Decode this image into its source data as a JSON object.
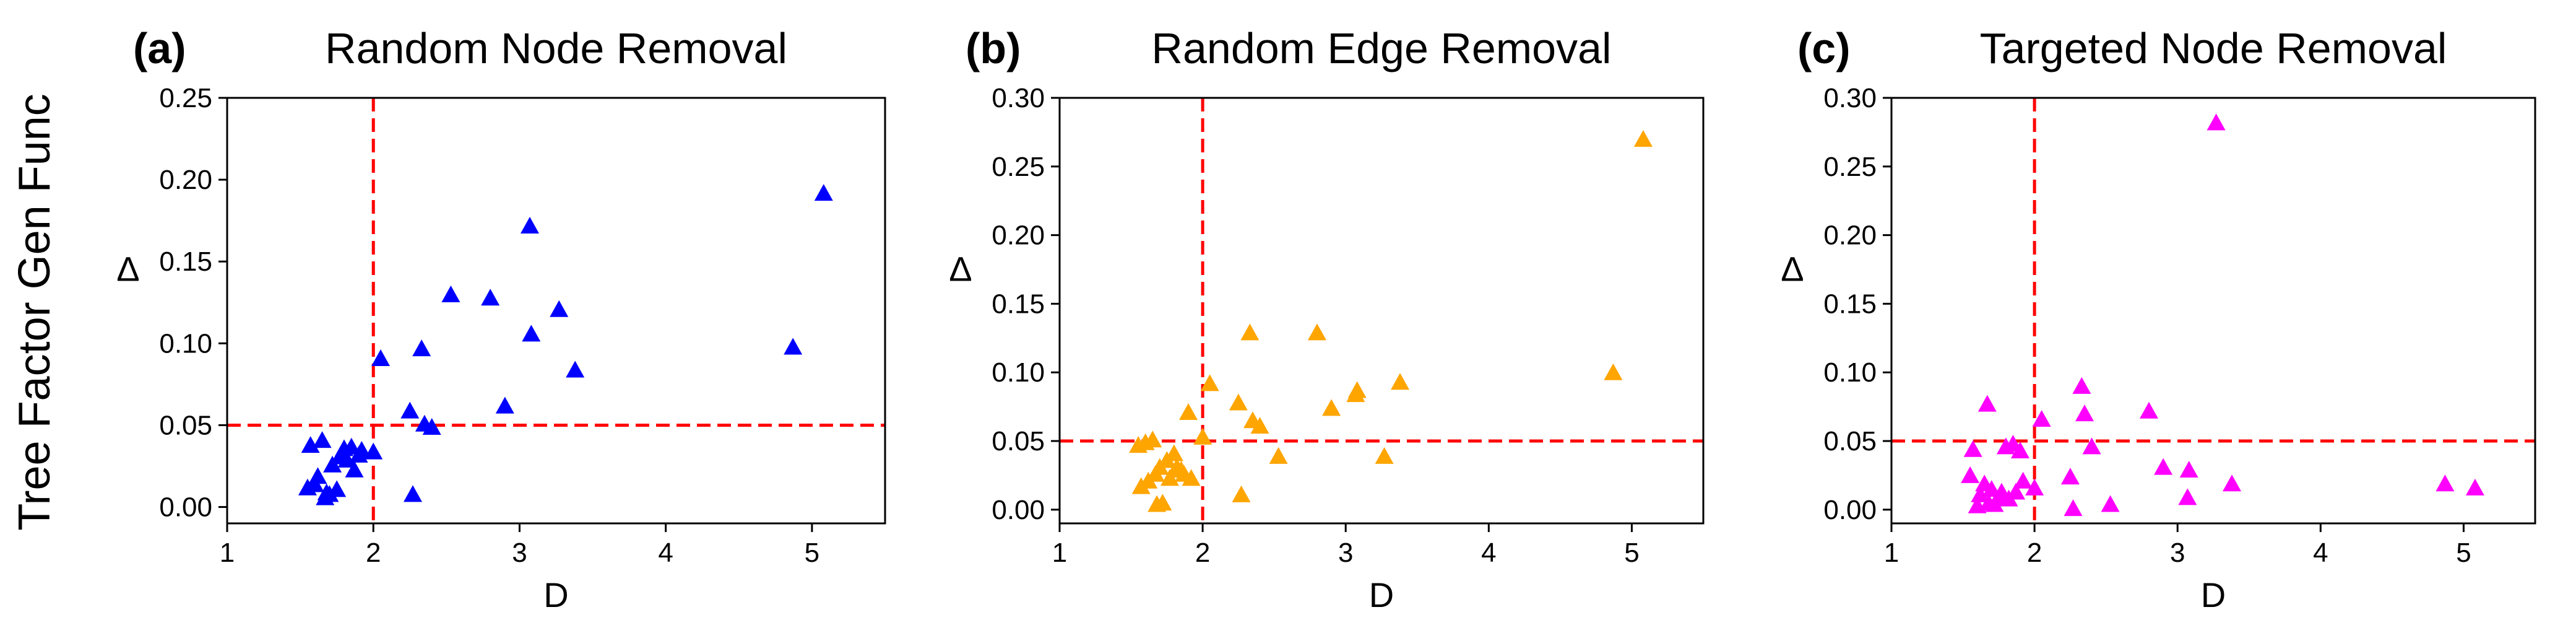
{
  "figure": {
    "ylabel_global": "Tree Factor Gen Func"
  },
  "chart_data": [
    {
      "type": "scatter",
      "panel_label": "(a)",
      "title": "Random Node Removal",
      "xlabel": "D",
      "ylabel": "Δ",
      "xlim": [
        1,
        5.5
      ],
      "ylim": [
        -0.01,
        0.25
      ],
      "xticks": [
        "1",
        "2",
        "3",
        "4",
        "5"
      ],
      "xtick_values": [
        1,
        2,
        3,
        4,
        5
      ],
      "yticks": [
        "0.00",
        "0.05",
        "0.10",
        "0.15",
        "0.20",
        "0.25"
      ],
      "ytick_values": [
        0,
        0.05,
        0.1,
        0.15,
        0.2,
        0.25
      ],
      "marker": "triangle",
      "color": "#0000ff",
      "vline_x": 2,
      "hline_y": 0.05,
      "threshold_color": "#ff0000",
      "x": [
        1.55,
        1.57,
        1.6,
        1.62,
        1.65,
        1.67,
        1.68,
        1.7,
        1.72,
        1.75,
        1.77,
        1.8,
        1.82,
        1.85,
        1.87,
        1.9,
        1.92,
        2.0,
        2.05,
        2.25,
        2.27,
        2.33,
        2.35,
        2.4,
        2.53,
        2.8,
        2.9,
        3.07,
        3.08,
        3.27,
        3.38,
        4.87,
        5.08
      ],
      "y": [
        0.011,
        0.037,
        0.013,
        0.018,
        0.04,
        0.005,
        0.008,
        0.007,
        0.025,
        0.01,
        0.03,
        0.035,
        0.028,
        0.036,
        0.022,
        0.031,
        0.034,
        0.033,
        0.09,
        0.058,
        0.007,
        0.096,
        0.05,
        0.048,
        0.129,
        0.127,
        0.061,
        0.171,
        0.105,
        0.12,
        0.083,
        0.097,
        0.191
      ]
    },
    {
      "type": "scatter",
      "panel_label": "(b)",
      "title": "Random Edge Removal",
      "xlabel": "D",
      "ylabel": "Δ",
      "xlim": [
        1,
        5.5
      ],
      "ylim": [
        -0.01,
        0.3
      ],
      "xticks": [
        "1",
        "2",
        "3",
        "4",
        "5"
      ],
      "xtick_values": [
        1,
        2,
        3,
        4,
        5
      ],
      "yticks": [
        "0.00",
        "0.05",
        "0.10",
        "0.15",
        "0.20",
        "0.25",
        "0.30"
      ],
      "ytick_values": [
        0,
        0.05,
        0.1,
        0.15,
        0.2,
        0.25,
        0.3
      ],
      "marker": "triangle",
      "color": "#ffa500",
      "vline_x": 2,
      "hline_y": 0.05,
      "threshold_color": "#ff0000",
      "x": [
        1.55,
        1.57,
        1.6,
        1.62,
        1.65,
        1.67,
        1.68,
        1.7,
        1.72,
        1.75,
        1.77,
        1.8,
        1.82,
        1.85,
        1.87,
        1.9,
        1.92,
        2.0,
        2.05,
        2.25,
        2.27,
        2.33,
        2.35,
        2.4,
        2.53,
        2.8,
        2.9,
        3.07,
        3.08,
        3.27,
        3.38,
        4.87,
        5.08
      ],
      "y": [
        0.046,
        0.016,
        0.048,
        0.02,
        0.05,
        0.025,
        0.003,
        0.03,
        0.004,
        0.035,
        0.022,
        0.04,
        0.03,
        0.028,
        0.025,
        0.07,
        0.022,
        0.052,
        0.091,
        0.077,
        0.01,
        0.128,
        0.064,
        0.06,
        0.038,
        0.128,
        0.073,
        0.083,
        0.086,
        0.038,
        0.092,
        0.099,
        0.269
      ]
    },
    {
      "type": "scatter",
      "panel_label": "(c)",
      "title": "Targeted Node Removal",
      "xlabel": "D",
      "ylabel": "Δ",
      "xlim": [
        1,
        5.5
      ],
      "ylim": [
        -0.01,
        0.3
      ],
      "xticks": [
        "1",
        "2",
        "3",
        "4",
        "5"
      ],
      "xtick_values": [
        1,
        2,
        3,
        4,
        5
      ],
      "yticks": [
        "0.00",
        "0.05",
        "0.10",
        "0.15",
        "0.20",
        "0.25",
        "0.30"
      ],
      "ytick_values": [
        0,
        0.05,
        0.1,
        0.15,
        0.2,
        0.25,
        0.3
      ],
      "marker": "triangle",
      "color": "#ff00ff",
      "vline_x": 2,
      "hline_y": 0.05,
      "threshold_color": "#ff0000",
      "x": [
        1.55,
        1.57,
        1.6,
        1.62,
        1.65,
        1.67,
        1.68,
        1.7,
        1.72,
        1.75,
        1.77,
        1.8,
        1.82,
        1.85,
        1.87,
        1.9,
        1.92,
        2.0,
        2.05,
        2.25,
        2.27,
        2.33,
        2.35,
        2.4,
        2.53,
        2.8,
        2.9,
        3.07,
        3.08,
        3.27,
        3.38,
        4.87,
        5.08
      ],
      "y": [
        0.024,
        0.043,
        0.002,
        0.01,
        0.018,
        0.076,
        0.004,
        0.014,
        0.003,
        0.008,
        0.012,
        0.045,
        0.007,
        0.047,
        0.012,
        0.042,
        0.02,
        0.015,
        0.065,
        0.023,
        0.0,
        0.089,
        0.069,
        0.045,
        0.003,
        0.071,
        0.03,
        0.008,
        0.028,
        0.281,
        0.018,
        0.018,
        0.015
      ]
    }
  ]
}
